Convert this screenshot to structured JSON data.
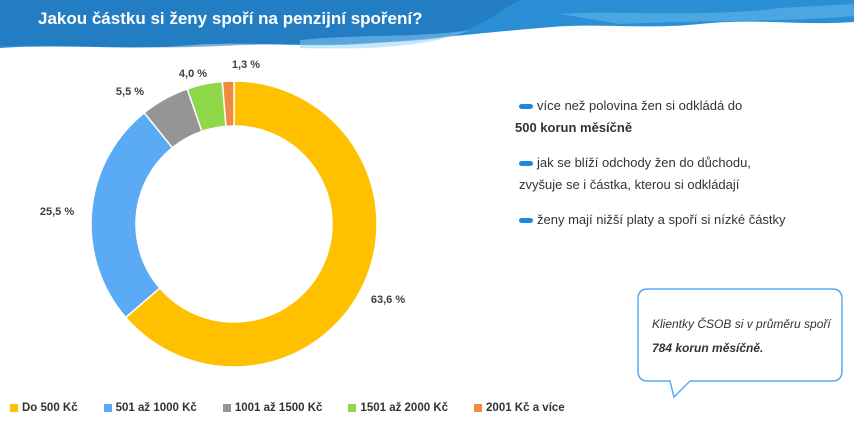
{
  "header": {
    "title": "Jakou částku si ženy spoří na penzijní spoření?",
    "colors": {
      "banner": "#2a8fd4",
      "banner_dark": "#1b6fb5"
    }
  },
  "chart_data": {
    "type": "pie",
    "categories": [
      "Do 500 Kč",
      "501 až 1000 Kč",
      "1001 až 1500 Kč",
      "1501 až 2000 Kč",
      "2001 Kč a více"
    ],
    "values": [
      63.6,
      25.5,
      5.5,
      4.0,
      1.3
    ],
    "labels": [
      "63,6 %",
      "25,5 %",
      "5,5 %",
      "4,0 %",
      "1,3 %"
    ],
    "colors": [
      "#ffc000",
      "#5aaaf5",
      "#959595",
      "#8ed84a",
      "#f08a3e"
    ],
    "legend_position": "bottom"
  },
  "bullets": {
    "color": "#1e8ad6",
    "items": [
      {
        "text": "více než polovina žen si odkládá do",
        "bold": "500 korun měsíčně"
      },
      {
        "text": "jak se blíží odchody žen do důchodu,",
        "text2": "zvyšuje se i částka, kterou si odkládají"
      },
      {
        "text": "ženy mají nižší platy a spoří si nízké částky"
      }
    ]
  },
  "callout": {
    "text_before": "Klientky ČSOB si v průměru spoří ",
    "bold": "784 korun měsíčně.",
    "border_color": "#5aaaf5"
  }
}
